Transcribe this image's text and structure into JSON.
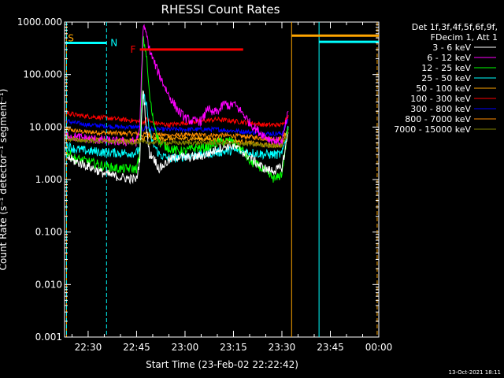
{
  "chart_data": {
    "type": "line",
    "title": "RHESSI Count Rates",
    "xlabel": "Start Time (23-Feb-02 22:22:42)",
    "ylabel": "Count Rate (s⁻¹ detector⁻¹ segment⁻¹)",
    "y_scale": "log",
    "ylim": [
      0.001,
      1000
    ],
    "xlim_minutes": [
      22.7,
      120
    ],
    "x_ticks": [
      {
        "label": "22:30",
        "minutes": 30
      },
      {
        "label": "22:45",
        "minutes": 45
      },
      {
        "label": "23:00",
        "minutes": 60
      },
      {
        "label": "23:15",
        "minutes": 75
      },
      {
        "label": "23:30",
        "minutes": 90
      },
      {
        "label": "23:45",
        "minutes": 105
      },
      {
        "label": "00:00",
        "minutes": 120
      }
    ],
    "y_ticks": [
      "0.001",
      "0.010",
      "0.100",
      "1.000",
      "10.000",
      "100.000",
      "1000.000"
    ],
    "legend_header": [
      "Det 1f,3f,4f,5f,6f,9f,",
      "FDecim 1, Att 1"
    ],
    "series": [
      {
        "name": "3 - 6 keV",
        "color": "#ffffff",
        "x": [
          23,
          26,
          30,
          35,
          40,
          45,
          46,
          47,
          48,
          49,
          50,
          52,
          55,
          58,
          60,
          63,
          66,
          68,
          70,
          72,
          74,
          76,
          78,
          80,
          82,
          84,
          86,
          88,
          90,
          92
        ],
        "y": [
          2.8,
          2.2,
          1.8,
          1.3,
          1.1,
          1.0,
          2.5,
          60,
          10,
          3,
          2.8,
          1.6,
          2.3,
          2.8,
          2.6,
          2.7,
          2.9,
          3.3,
          3.8,
          4.2,
          4.5,
          4.0,
          3.3,
          2.7,
          2.1,
          1.7,
          1.5,
          1.5,
          1.7,
          8
        ]
      },
      {
        "name": "6 - 12 keV",
        "color": "#ff00ff",
        "x": [
          23,
          26,
          30,
          35,
          40,
          45,
          46,
          47,
          48,
          49,
          50,
          52,
          55,
          58,
          60,
          62,
          65,
          66,
          67,
          68,
          70,
          71,
          72,
          74,
          75,
          78,
          80,
          83,
          86,
          90,
          92
        ],
        "y": [
          7,
          6.5,
          6,
          5.5,
          5.3,
          5.2,
          10,
          800,
          600,
          300,
          200,
          100,
          40,
          20,
          15,
          13,
          13,
          16,
          25,
          18,
          20,
          22,
          28,
          25,
          28,
          18,
          12,
          8,
          6,
          5,
          20
        ]
      },
      {
        "name": "12 - 25 keV",
        "color": "#00ff00",
        "x": [
          23,
          26,
          30,
          35,
          40,
          45,
          46,
          47,
          48,
          49,
          50,
          52,
          55,
          58,
          60,
          63,
          66,
          70,
          74,
          78,
          80,
          83,
          86,
          88,
          90,
          92
        ],
        "y": [
          3.5,
          2.5,
          2.2,
          1.8,
          1.6,
          1.6,
          3,
          500,
          250,
          40,
          15,
          5,
          4,
          3.5,
          3.5,
          4,
          4,
          5,
          5.5,
          3.5,
          2.2,
          1.8,
          1.2,
          1.0,
          1.3,
          10
        ]
      },
      {
        "name": "25 - 50 keV",
        "color": "#00ffff",
        "x": [
          23,
          26,
          30,
          35,
          40,
          45,
          46,
          47,
          48,
          49,
          50,
          52,
          55,
          58,
          60,
          65,
          70,
          75,
          80,
          85,
          90,
          92
        ],
        "y": [
          4.5,
          3.8,
          3.5,
          3.3,
          3.2,
          3.2,
          4,
          40,
          30,
          8,
          5,
          3.0,
          2.5,
          2.6,
          2.8,
          3.0,
          3.3,
          3.6,
          3.3,
          3.0,
          3.0,
          10
        ]
      },
      {
        "name": "50 - 100 keV",
        "color": "#ffa500",
        "x": [
          23,
          26,
          30,
          35,
          40,
          45,
          47,
          48,
          50,
          55,
          60,
          65,
          70,
          75,
          80,
          85,
          90,
          92
        ],
        "y": [
          6.5,
          6,
          5.8,
          5.6,
          5.5,
          5.5,
          6,
          6.5,
          6,
          6,
          6,
          6,
          5.8,
          5.5,
          5,
          4.5,
          4.5,
          10
        ]
      },
      {
        "name": "100 - 300 keV",
        "color": "#ff0000",
        "x": [
          23,
          26,
          30,
          35,
          40,
          45,
          47,
          48,
          50,
          55,
          60,
          65,
          70,
          75,
          80,
          85,
          90,
          92
        ],
        "y": [
          19,
          17,
          16,
          15,
          14,
          13,
          12,
          14,
          12,
          11,
          12,
          13,
          14,
          13,
          12,
          11,
          11,
          17
        ]
      },
      {
        "name": "300 - 800 keV",
        "color": "#0000ff",
        "x": [
          23,
          26,
          30,
          35,
          40,
          45,
          47,
          48,
          50,
          55,
          60,
          65,
          70,
          75,
          80,
          85,
          90,
          92
        ],
        "y": [
          13,
          12,
          11,
          10.5,
          10,
          10,
          9,
          10,
          9,
          9,
          9,
          9,
          9,
          8.5,
          8,
          7.5,
          7.5,
          14
        ]
      },
      {
        "name": "800 - 7000 keV",
        "color": "#ff8c00",
        "x": [
          23,
          26,
          30,
          35,
          40,
          45,
          47,
          48,
          50,
          55,
          60,
          65,
          70,
          75,
          80,
          85,
          90,
          92
        ],
        "y": [
          9,
          8.5,
          8,
          7.8,
          7.6,
          7.5,
          7,
          7.5,
          7.2,
          7,
          7,
          7,
          7,
          6.8,
          6.5,
          6,
          6,
          9
        ]
      },
      {
        "name": "7000 - 15000 keV",
        "color": "#808000",
        "x": [
          23,
          26,
          30,
          35,
          40,
          45,
          50,
          55,
          60,
          65,
          70,
          75,
          80,
          85,
          90,
          92
        ],
        "y": [
          6,
          5.7,
          5.5,
          5.3,
          5.2,
          5.1,
          5.1,
          5.0,
          5.0,
          5.0,
          5.0,
          4.9,
          4.7,
          4.5,
          4.4,
          8
        ]
      }
    ],
    "annotations": {
      "S": {
        "label": "S",
        "color": "#ffa500",
        "y": 400,
        "x_start": 23,
        "x_end": 35.7
      },
      "N": {
        "label": "N",
        "color": "#00ffff",
        "y": 400,
        "x_start": 23,
        "x_end": 35.7
      },
      "F": {
        "label": "F",
        "color": "#ff0000",
        "y": 300,
        "x_start": 46,
        "x_end": 78
      },
      "attenuator_orange": {
        "color": "#ffa500",
        "y": 550,
        "x_start": 93,
        "x_end": 120
      },
      "attenuator_cyan": {
        "color": "#00ffff",
        "y": 420,
        "x_start": 101.5,
        "x_end": 120
      }
    },
    "vertical_markers": [
      {
        "x": 23.3,
        "color": "#ffa500",
        "style": "solid"
      },
      {
        "x": 23.3,
        "color": "#00ffff",
        "style": "dashed"
      },
      {
        "x": 35.7,
        "color": "#00ffff",
        "style": "dashed"
      },
      {
        "x": 93.0,
        "color": "#ffa500",
        "style": "solid"
      },
      {
        "x": 101.5,
        "color": "#00ffff",
        "style": "solid"
      },
      {
        "x": 119.5,
        "color": "#ffa500",
        "style": "dashed"
      }
    ]
  },
  "timestamp": "13-Oct-2021 18:11"
}
